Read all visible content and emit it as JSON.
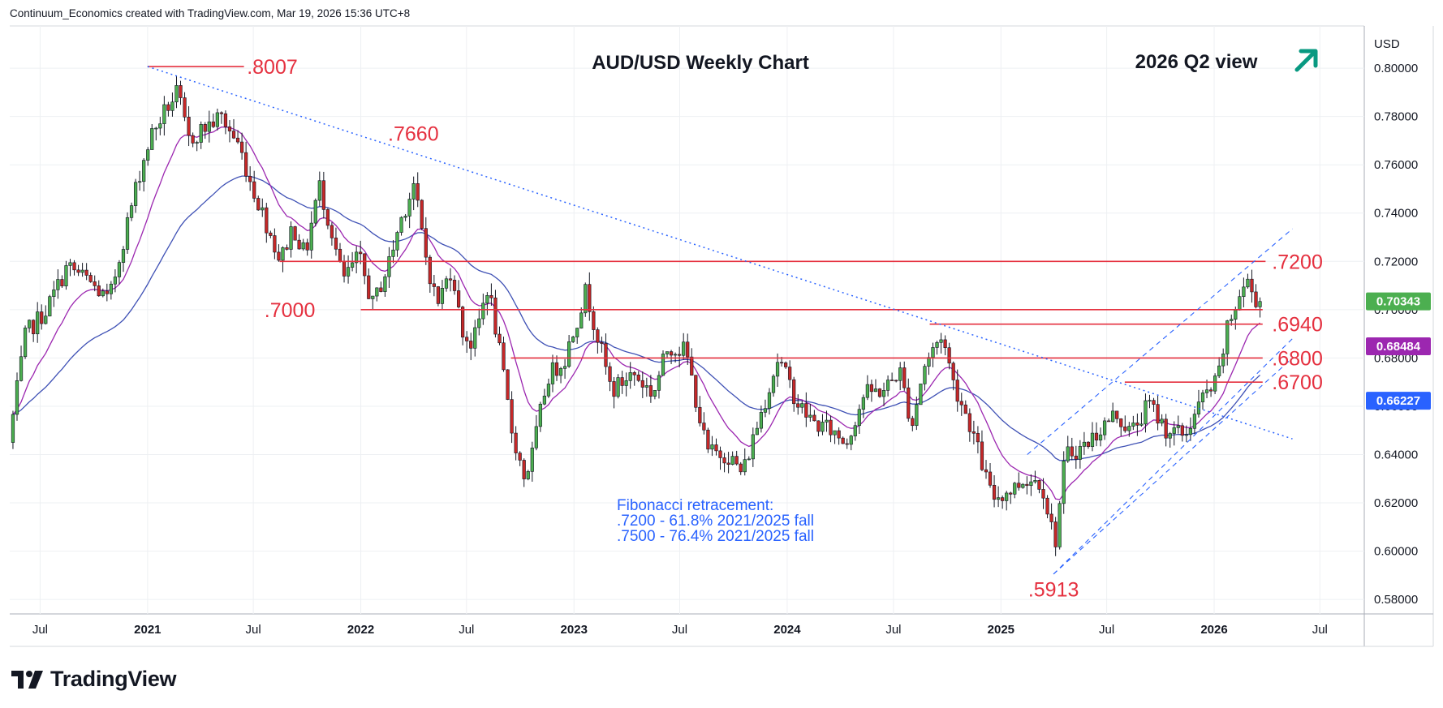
{
  "header": {
    "attribution": "Continuum_Economics created with TradingView.com, Mar 19, 2026 15:36 UTC+8"
  },
  "brand": {
    "name": "TradingView",
    "logo": "tradingview-logo-icon"
  },
  "colors": {
    "bull": "#4caf50",
    "bear": "#c62828",
    "level_line": "#e5303f",
    "ma_short": "#9c27b0",
    "ma_long": "#3f51b5",
    "channel": "#2962ff",
    "price_tag": "#4caf50",
    "ma_short_tag": "#9c27b0",
    "ma_long_tag": "#2962ff",
    "arrow": "#089981",
    "fib_text": "#2962ff"
  },
  "chart_data": {
    "type": "candlestick",
    "title": "AUD/USD Weekly Chart",
    "subtitle": "2026 Q2 view",
    "view_arrow": "up-right-arrow-icon",
    "currency": "USD",
    "y_ticks": [
      "0.80000",
      "0.78000",
      "0.76000",
      "0.74000",
      "0.72000",
      "0.70000",
      "0.68000",
      "0.66000",
      "0.64000",
      "0.62000",
      "0.60000",
      "0.58000"
    ],
    "y_tick_values": [
      0.8,
      0.78,
      0.76,
      0.74,
      0.72,
      0.7,
      0.68,
      0.66,
      0.64,
      0.62,
      0.6,
      0.58
    ],
    "ylim": [
      0.574,
      0.8175
    ],
    "x_ticks": [
      {
        "label": "Jul",
        "date": "2020-07-01"
      },
      {
        "label": "2021",
        "date": "2021-01-01"
      },
      {
        "label": "Jul",
        "date": "2021-07-01"
      },
      {
        "label": "2022",
        "date": "2022-01-01"
      },
      {
        "label": "Jul",
        "date": "2022-07-01"
      },
      {
        "label": "2023",
        "date": "2023-01-01"
      },
      {
        "label": "Jul",
        "date": "2023-07-01"
      },
      {
        "label": "2024",
        "date": "2024-01-01"
      },
      {
        "label": "Jul",
        "date": "2024-07-01"
      },
      {
        "label": "2025",
        "date": "2025-01-01"
      },
      {
        "label": "Jul",
        "date": "2025-07-01"
      },
      {
        "label": "2026",
        "date": "2026-01-01"
      },
      {
        "label": "Jul",
        "date": "2026-07-01"
      }
    ],
    "xlim": [
      "2020-05-10",
      "2026-09-15"
    ],
    "price_tags": [
      {
        "label": "0.70343",
        "value": 0.70343,
        "kind": "price"
      },
      {
        "label": "0.68484",
        "value": 0.68484,
        "kind": "ma_short"
      },
      {
        "label": "0.66227",
        "value": 0.66227,
        "kind": "ma_long"
      }
    ],
    "levels": [
      {
        "label": ".8007",
        "value": 0.8007,
        "from": "2021-01-01",
        "to": "2021-06-15",
        "text_at": "2021-06-20",
        "text_above": false
      },
      {
        "label": ".7200",
        "value": 0.72,
        "from": "2021-08-15",
        "to": "2026-03-30",
        "text_at": "2026-04-10",
        "text_above": false
      },
      {
        "label": ".7000",
        "value": 0.7,
        "from": "2022-01-01",
        "to": "2026-03-25",
        "text_at": "2021-07-20",
        "text_above": false
      },
      {
        "label": ".6940",
        "value": 0.694,
        "from": "2024-09-01",
        "to": "2026-03-25",
        "text_at": "2026-04-10",
        "text_above": false
      },
      {
        "label": ".6800",
        "value": 0.68,
        "from": "2022-09-15",
        "to": "2026-03-25",
        "text_at": "2026-04-10",
        "text_above": false
      },
      {
        "label": ".6700",
        "value": 0.67,
        "from": "2025-08-01",
        "to": "2026-03-25",
        "text_at": "2026-04-10",
        "text_above": false
      }
    ],
    "annotations": [
      {
        "label": ".7660",
        "date": "2022-04-01",
        "value": 0.766
      },
      {
        "label": ".5913",
        "date": "2025-04-01",
        "value": 0.5913
      }
    ],
    "fib_note": [
      "Fibonacci retracement:",
      ".7200 - 61.8% 2021/2025 fall",
      ".7500 - 76.4% 2021/2025 fall"
    ],
    "trendline": {
      "from": {
        "date": "2021-01-01",
        "value": 0.8007
      },
      "to": {
        "date": "2026-05-15",
        "value": 0.6465
      }
    },
    "channel": {
      "lower": {
        "from": {
          "date": "2025-04-01",
          "value": 0.5905
        },
        "to": {
          "date": "2026-05-15",
          "value": 0.68
        }
      },
      "lower_inner": {
        "from": {
          "date": "2025-04-01",
          "value": 0.5905
        },
        "to": {
          "date": "2026-05-15",
          "value": 0.688
        }
      },
      "upper": {
        "from": {
          "date": "2025-02-15",
          "value": 0.64
        },
        "to": {
          "date": "2026-05-15",
          "value": 0.7335
        }
      }
    },
    "path_points": [
      [
        "2020-05-12",
        0.645
      ],
      [
        "2020-06-10",
        0.69
      ],
      [
        "2020-07-15",
        0.7
      ],
      [
        "2020-08-20",
        0.718
      ],
      [
        "2020-09-25",
        0.712
      ],
      [
        "2020-10-30",
        0.703
      ],
      [
        "2020-11-25",
        0.73
      ],
      [
        "2020-12-20",
        0.755
      ],
      [
        "2021-01-10",
        0.772
      ],
      [
        "2021-02-05",
        0.783
      ],
      [
        "2021-02-25",
        0.79
      ],
      [
        "2021-03-15",
        0.77
      ],
      [
        "2021-04-10",
        0.775
      ],
      [
        "2021-05-10",
        0.78
      ],
      [
        "2021-06-10",
        0.768
      ],
      [
        "2021-07-01",
        0.752
      ],
      [
        "2021-07-25",
        0.737
      ],
      [
        "2021-08-20",
        0.72
      ],
      [
        "2021-09-10",
        0.735
      ],
      [
        "2021-10-01",
        0.722
      ],
      [
        "2021-10-25",
        0.752
      ],
      [
        "2021-11-15",
        0.733
      ],
      [
        "2021-12-05",
        0.712
      ],
      [
        "2022-01-01",
        0.722
      ],
      [
        "2022-01-25",
        0.702
      ],
      [
        "2022-02-20",
        0.718
      ],
      [
        "2022-03-15",
        0.738
      ],
      [
        "2022-04-05",
        0.752
      ],
      [
        "2022-04-25",
        0.723
      ],
      [
        "2022-05-15",
        0.702
      ],
      [
        "2022-06-10",
        0.718
      ],
      [
        "2022-06-25",
        0.692
      ],
      [
        "2022-07-15",
        0.685
      ],
      [
        "2022-08-10",
        0.71
      ],
      [
        "2022-08-25",
        0.69
      ],
      [
        "2022-09-20",
        0.65
      ],
      [
        "2022-10-12",
        0.63
      ],
      [
        "2022-10-25",
        0.64
      ],
      [
        "2022-11-20",
        0.672
      ],
      [
        "2022-12-20",
        0.68
      ],
      [
        "2023-01-25",
        0.708
      ],
      [
        "2023-02-15",
        0.688
      ],
      [
        "2023-03-10",
        0.666
      ],
      [
        "2023-04-15",
        0.674
      ],
      [
        "2023-05-20",
        0.665
      ],
      [
        "2023-06-15",
        0.685
      ],
      [
        "2023-07-15",
        0.683
      ],
      [
        "2023-08-20",
        0.641
      ],
      [
        "2023-09-25",
        0.64
      ],
      [
        "2023-10-20",
        0.632
      ],
      [
        "2023-11-15",
        0.653
      ],
      [
        "2023-12-20",
        0.68
      ],
      [
        "2024-01-25",
        0.66
      ],
      [
        "2024-02-20",
        0.653
      ],
      [
        "2024-03-20",
        0.65
      ],
      [
        "2024-04-15",
        0.645
      ],
      [
        "2024-05-15",
        0.665
      ],
      [
        "2024-06-20",
        0.667
      ],
      [
        "2024-07-15",
        0.675
      ],
      [
        "2024-08-05",
        0.652
      ],
      [
        "2024-08-25",
        0.676
      ],
      [
        "2024-09-25",
        0.69
      ],
      [
        "2024-10-15",
        0.67
      ],
      [
        "2024-11-15",
        0.651
      ],
      [
        "2024-12-20",
        0.622
      ],
      [
        "2025-01-20",
        0.625
      ],
      [
        "2025-02-15",
        0.63
      ],
      [
        "2025-03-15",
        0.629
      ],
      [
        "2025-04-07",
        0.603
      ],
      [
        "2025-04-25",
        0.64
      ],
      [
        "2025-05-25",
        0.643
      ],
      [
        "2025-06-25",
        0.651
      ],
      [
        "2025-07-20",
        0.657
      ],
      [
        "2025-08-15",
        0.649
      ],
      [
        "2025-09-15",
        0.661
      ],
      [
        "2025-10-15",
        0.65
      ],
      [
        "2025-11-15",
        0.648
      ],
      [
        "2025-12-15",
        0.663
      ],
      [
        "2026-01-10",
        0.67
      ],
      [
        "2026-01-25",
        0.69
      ],
      [
        "2026-02-15",
        0.705
      ],
      [
        "2026-03-01",
        0.712
      ],
      [
        "2026-03-19",
        0.7034
      ]
    ]
  }
}
